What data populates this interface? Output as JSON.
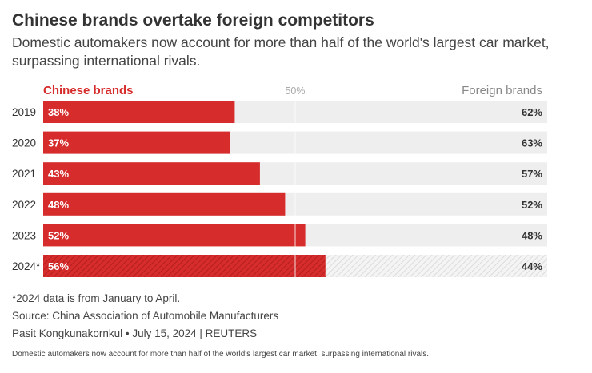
{
  "header": {
    "title": "Chinese brands overtake foreign competitors",
    "subtitle": "Domestic automakers now account for more than half of the world's largest car market, surpassing international rivals."
  },
  "chart_data": {
    "type": "bar",
    "orientation": "horizontal",
    "stacked": true,
    "categories": [
      "2019",
      "2020",
      "2021",
      "2022",
      "2023",
      "2024*"
    ],
    "series": [
      {
        "name": "Chinese brands",
        "values": [
          38,
          37,
          43,
          48,
          52,
          56
        ],
        "labels": [
          "38%",
          "37%",
          "43%",
          "48%",
          "52%",
          "56%"
        ],
        "color": "#d62c2c"
      },
      {
        "name": "Foreign brands",
        "values": [
          62,
          63,
          57,
          52,
          48,
          44
        ],
        "labels": [
          "62%",
          "63%",
          "57%",
          "52%",
          "48%",
          "44%"
        ],
        "color": "#eeeeee"
      }
    ],
    "reference_line": {
      "value": 50,
      "label": "50%"
    },
    "xlim": [
      0,
      100
    ],
    "hatched_category": "2024*",
    "legend_left": "Chinese brands",
    "legend_right": "Foreign brands"
  },
  "footer": {
    "note": "*2024 data is from January to April.",
    "source": "Source: China Association of Automobile Manufacturers",
    "byline": "Pasit Kongkunakornkul • July 15, 2024 | REUTERS",
    "caption": "Domestic automakers now account for more than half of the world's largest car market, surpassing international rivals."
  },
  "colors": {
    "chinese": "#d62c2c",
    "chinese_label": "#d62c2c",
    "chinese_hatch": "#b51f1f",
    "foreign": "#eeeeee",
    "foreign_hatch": "#d6d6d6",
    "foreign_label": "#888888",
    "midline_label": "#aaaaaa",
    "text": "#333333"
  }
}
